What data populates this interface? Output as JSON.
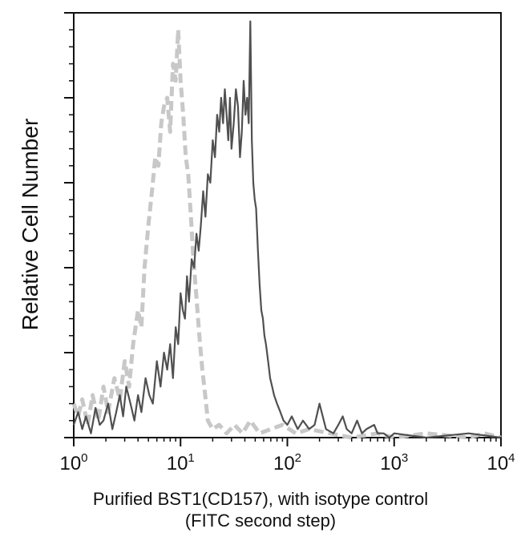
{
  "chart_data": {
    "type": "line",
    "title": "",
    "ylabel": "Relative Cell Number",
    "xlabel_line1": "Purified BST1(CD157), with isotype control",
    "xlabel_line2": "(FITC second step)",
    "xscale": "log",
    "xlim": [
      1,
      10000
    ],
    "ylim": [
      0,
      100
    ],
    "x_ticks": [
      {
        "base": "10",
        "exp": "0",
        "value": 1
      },
      {
        "base": "10",
        "exp": "1",
        "value": 10
      },
      {
        "base": "10",
        "exp": "2",
        "value": 100
      },
      {
        "base": "10",
        "exp": "3",
        "value": 1000
      },
      {
        "base": "10",
        "exp": "4",
        "value": 10000
      }
    ],
    "series": [
      {
        "role": "isotype control",
        "style": "dashed",
        "color": "#c8c8c8",
        "x": [
          1.0,
          1.1,
          1.2,
          1.35,
          1.5,
          1.7,
          1.9,
          2.1,
          2.4,
          2.7,
          3.0,
          3.3,
          3.6,
          4.0,
          4.3,
          4.6,
          5.0,
          5.4,
          5.8,
          6.2,
          6.6,
          7.0,
          7.5,
          8.0,
          8.5,
          9.0,
          9.5,
          10.0,
          10.6,
          11.2,
          11.8,
          12.5,
          13.2,
          14.0,
          15.0,
          16.0,
          17.0,
          18.0,
          20.0,
          23.0,
          27.0,
          32.0,
          38.0,
          45.0,
          55.0,
          70.0,
          90.0,
          120.0,
          160.0,
          250.0,
          400.0,
          700.0,
          1000.0,
          2000.0,
          5000.0,
          7000.0,
          10000.0
        ],
        "y": [
          8,
          5,
          9,
          3,
          10,
          4,
          12,
          6,
          14,
          9,
          18,
          12,
          22,
          30,
          26,
          40,
          50,
          58,
          66,
          64,
          74,
          78,
          80,
          72,
          88,
          84,
          96,
          84,
          76,
          66,
          62,
          52,
          42,
          34,
          24,
          16,
          10,
          4,
          2,
          3,
          1,
          3,
          1,
          4,
          1,
          2,
          3,
          1,
          2,
          1,
          0,
          1,
          0,
          1,
          0,
          1,
          0
        ]
      },
      {
        "role": "BST1 (CD157)",
        "style": "solid",
        "color": "#505050",
        "x": [
          1.0,
          1.1,
          1.2,
          1.3,
          1.45,
          1.6,
          1.75,
          1.9,
          2.1,
          2.3,
          2.5,
          2.7,
          2.9,
          3.1,
          3.4,
          3.7,
          4.0,
          4.3,
          4.7,
          5.1,
          5.5,
          6.0,
          6.5,
          7.0,
          7.5,
          8.0,
          8.5,
          9.0,
          9.5,
          10.0,
          10.5,
          11.0,
          11.5,
          12.0,
          12.7,
          13.4,
          14.1,
          14.8,
          15.5,
          16.3,
          17.1,
          18.0,
          19.0,
          20.0,
          21.0,
          22.0,
          23.0,
          24.0,
          25.0,
          26.0,
          27.0,
          28.0,
          29.0,
          30.0,
          31.5,
          33.0,
          34.5,
          36.0,
          37.5,
          39.0,
          40.5,
          42.0,
          43.5,
          45.0,
          46.5,
          48.0,
          49.5,
          51.0,
          53.0,
          55.0,
          57.0,
          59.0,
          61.0,
          63.0,
          66.0,
          69.0,
          72.0,
          75.0,
          80.0,
          86.0,
          92.0,
          100.0,
          110.0,
          125.0,
          140.0,
          160.0,
          180.0,
          200.0,
          230.0,
          270.0,
          300.0,
          330.0,
          360.0,
          400.0,
          450.0,
          500.0,
          550.0,
          650.0,
          700.0,
          800.0,
          900.0,
          1000.0,
          2000.0,
          5000.0,
          10000.0
        ],
        "y": [
          3,
          6,
          2,
          5,
          1,
          7,
          3,
          4,
          8,
          2,
          6,
          10,
          5,
          12,
          8,
          4,
          10,
          6,
          14,
          10,
          8,
          18,
          12,
          20,
          16,
          22,
          14,
          26,
          22,
          34,
          30,
          28,
          38,
          32,
          42,
          40,
          48,
          44,
          50,
          58,
          52,
          62,
          60,
          70,
          66,
          76,
          72,
          80,
          74,
          82,
          76,
          70,
          80,
          68,
          74,
          82,
          78,
          66,
          72,
          84,
          76,
          80,
          74,
          98,
          70,
          60,
          56,
          54,
          44,
          36,
          30,
          28,
          24,
          22,
          18,
          14,
          12,
          10,
          8,
          6,
          4,
          3,
          5,
          2,
          4,
          2,
          3,
          8,
          2,
          1,
          3,
          5,
          2,
          1,
          4,
          1,
          2,
          3,
          1,
          1,
          0,
          1,
          0,
          1,
          0
        ]
      }
    ],
    "grid": false,
    "legend": "none"
  }
}
